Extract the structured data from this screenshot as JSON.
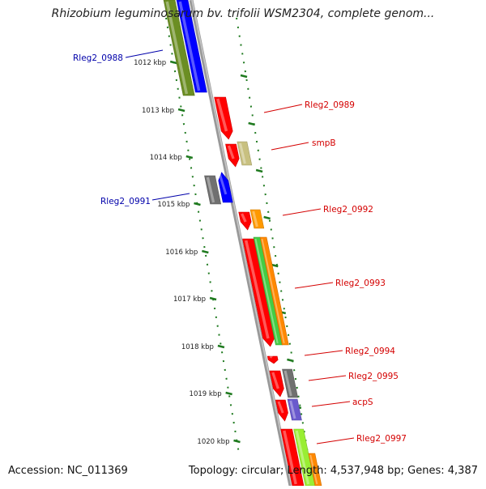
{
  "title": "Rhizobium leguminosarum bv. trifolii WSM2304, complete genom...",
  "footer": {
    "accession": "Accession: NC_011369",
    "summary": "Topology: circular; Length: 4,537,948 bp; Genes: 4,387"
  },
  "colors": {
    "backbone": "#8a8a8a",
    "tick": "#1f7a1f",
    "forward_label": "#d40000",
    "reverse_label": "#0000aa"
  },
  "ticks": [
    {
      "label": "1012 kbp"
    },
    {
      "label": "1013 kbp"
    },
    {
      "label": "1014 kbp"
    },
    {
      "label": "1015 kbp"
    },
    {
      "label": "1016 kbp"
    },
    {
      "label": "1017 kbp"
    },
    {
      "label": "1018 kbp"
    },
    {
      "label": "1019 kbp"
    },
    {
      "label": "1020 kbp"
    }
  ],
  "genes": [
    {
      "id": "g1",
      "color": "#6b8e23",
      "strand": "reverse",
      "shape": "bar"
    },
    {
      "id": "g2",
      "color": "#0000ff",
      "strand": "reverse",
      "shape": "bar"
    },
    {
      "id": "g3",
      "color": "#ff0000",
      "strand": "forward",
      "shape": "arrow"
    },
    {
      "id": "g4",
      "color": "#ff0000",
      "strand": "forward",
      "shape": "arrow"
    },
    {
      "id": "g5",
      "color": "#c8c080",
      "strand": "forward",
      "shape": "bar"
    },
    {
      "id": "g6",
      "color": "#707070",
      "strand": "reverse",
      "shape": "bar"
    },
    {
      "id": "g7",
      "color": "#0000ff",
      "strand": "reverse",
      "shape": "arrow"
    },
    {
      "id": "g8",
      "color": "#ff0000",
      "strand": "forward",
      "shape": "arrow"
    },
    {
      "id": "g9",
      "color": "#ff9900",
      "strand": "forward",
      "shape": "bar"
    },
    {
      "id": "g10",
      "color": "#ff0000",
      "strand": "forward",
      "shape": "arrow"
    },
    {
      "id": "g11",
      "color": "#44cc44",
      "strand": "forward",
      "shape": "bar"
    },
    {
      "id": "g12",
      "color": "#ff8800",
      "strand": "forward",
      "shape": "bar"
    },
    {
      "id": "g13",
      "color": "#ff0000",
      "strand": "forward",
      "shape": "arrow"
    },
    {
      "id": "g14",
      "color": "#ff0000",
      "strand": "forward",
      "shape": "arrow"
    },
    {
      "id": "g15",
      "color": "#707070",
      "strand": "forward",
      "shape": "bar"
    },
    {
      "id": "g16",
      "color": "#ff0000",
      "strand": "forward",
      "shape": "arrow"
    },
    {
      "id": "g17",
      "color": "#6a5acd",
      "strand": "forward",
      "shape": "bar"
    },
    {
      "id": "g18",
      "color": "#ff0000",
      "strand": "forward",
      "shape": "bar"
    },
    {
      "id": "g19",
      "color": "#99ee33",
      "strand": "forward",
      "shape": "bar"
    },
    {
      "id": "g20",
      "color": "#ff8800",
      "strand": "forward",
      "shape": "bar"
    }
  ],
  "labels": [
    {
      "text": "Rleg2_0988",
      "strand": "reverse"
    },
    {
      "text": "Rleg2_0989",
      "strand": "forward"
    },
    {
      "text": "smpB",
      "strand": "forward"
    },
    {
      "text": "Rleg2_0991",
      "strand": "reverse"
    },
    {
      "text": "Rleg2_0992",
      "strand": "forward"
    },
    {
      "text": "Rleg2_0993",
      "strand": "forward"
    },
    {
      "text": "Rleg2_0994",
      "strand": "forward"
    },
    {
      "text": "Rleg2_0995",
      "strand": "forward"
    },
    {
      "text": "acpS",
      "strand": "forward"
    },
    {
      "text": "Rleg2_0997",
      "strand": "forward"
    }
  ]
}
